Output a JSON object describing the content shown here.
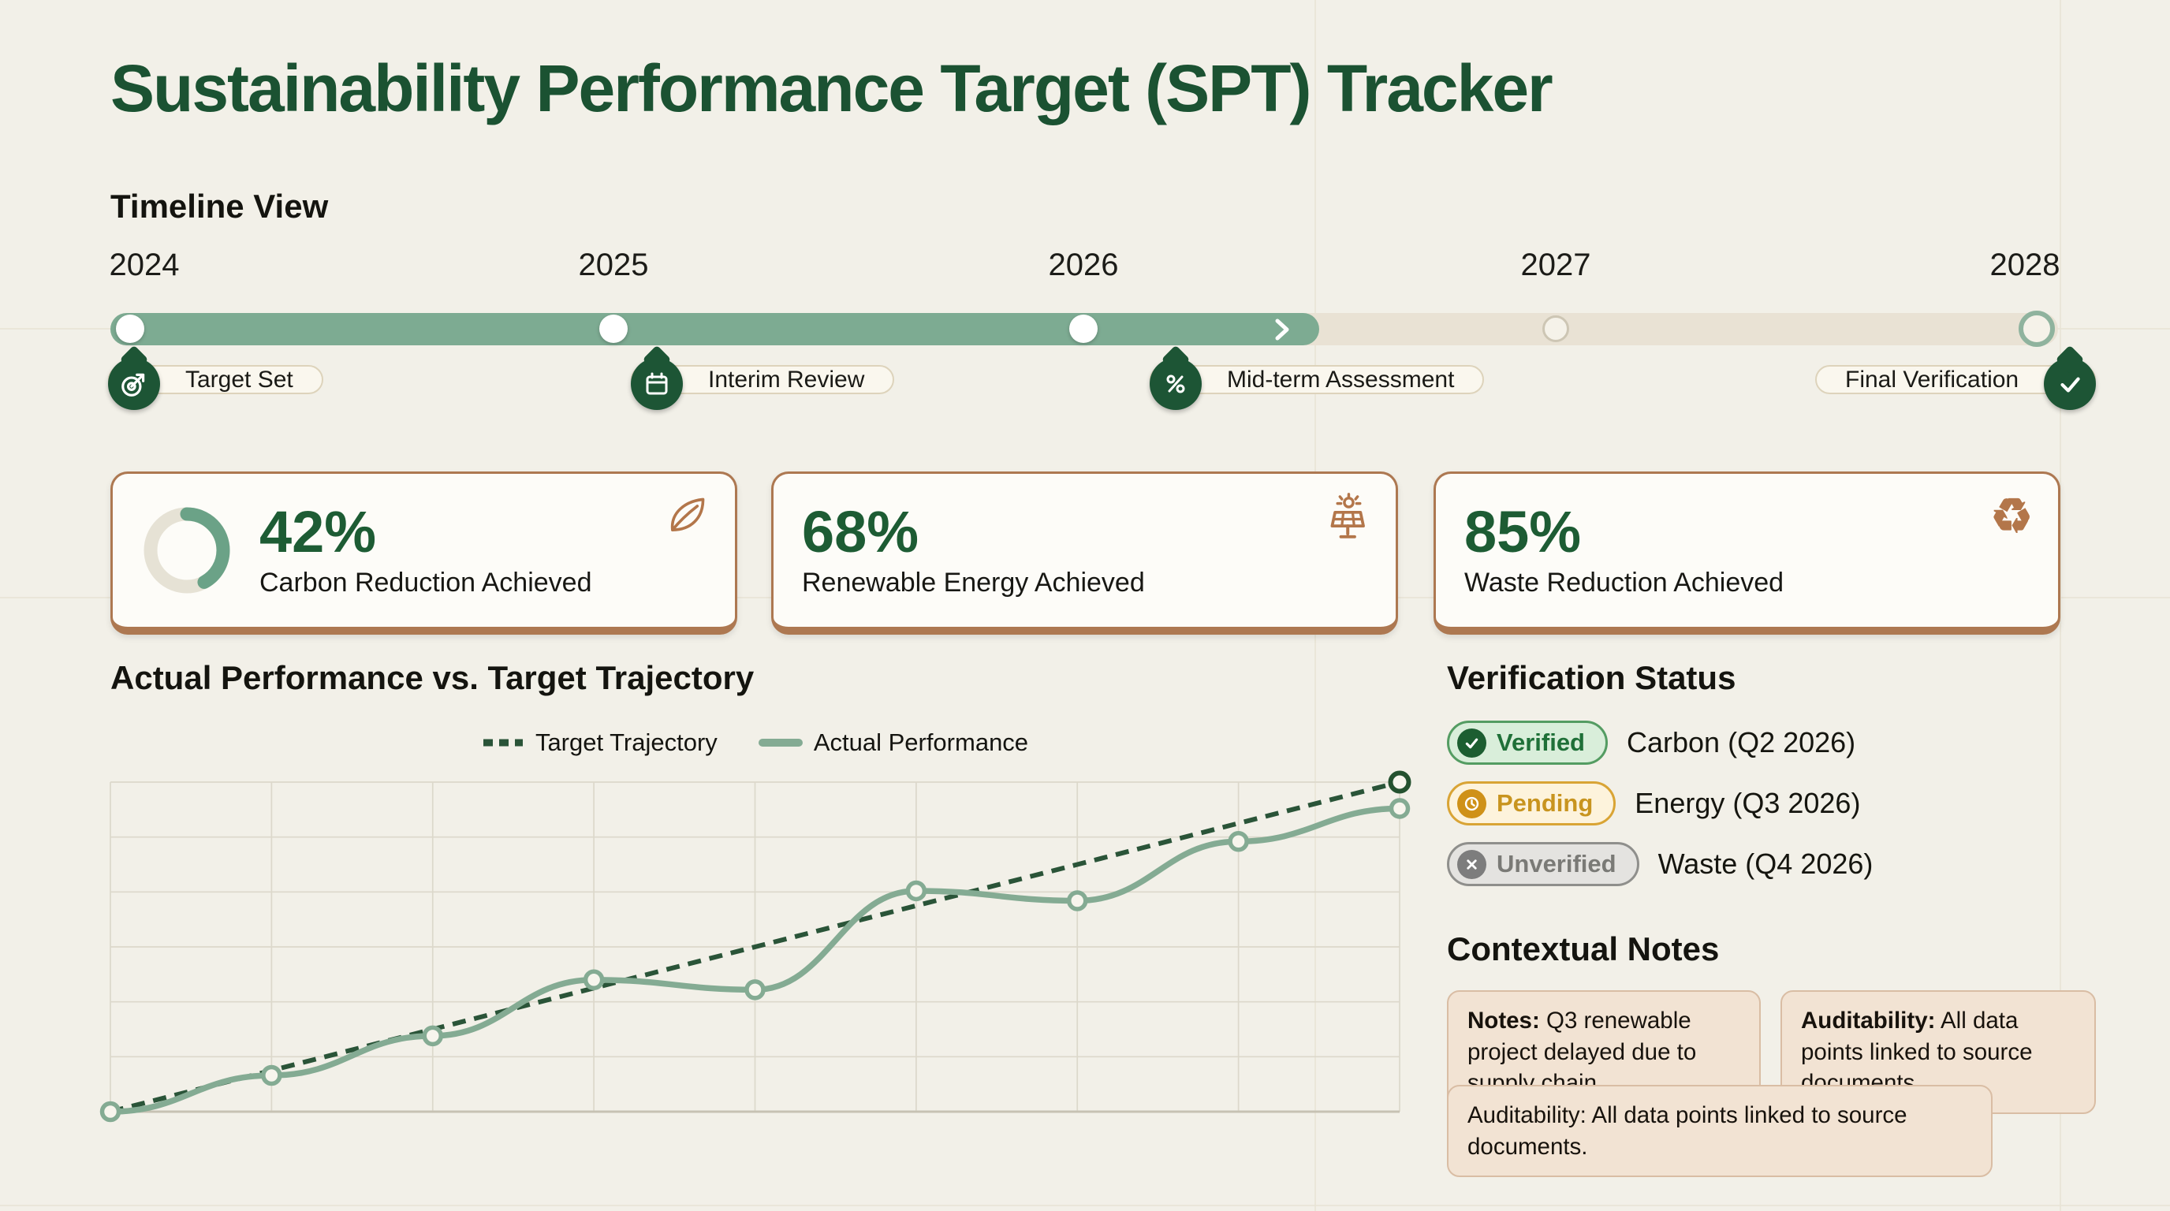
{
  "page": {
    "title": "Sustainability Performance Target (SPT) Tracker"
  },
  "timeline": {
    "heading": "Timeline View",
    "years": [
      "2024",
      "2025",
      "2026",
      "2027",
      "2028"
    ],
    "progress_percent": 62,
    "milestones": [
      {
        "label": "Target Set",
        "icon": "target-icon",
        "year": "2024"
      },
      {
        "label": "Interim Review",
        "icon": "calendar-icon",
        "year": "2025"
      },
      {
        "label": "Mid-term Assessment",
        "icon": "percent-icon",
        "year": "2026"
      },
      {
        "label": "Final Verification",
        "icon": "check-icon",
        "year": "2028"
      }
    ]
  },
  "kpis": [
    {
      "value": "42%",
      "percent": 42,
      "label": "Carbon Reduction Achieved",
      "icon": "leaf-icon",
      "has_donut": true
    },
    {
      "value": "68%",
      "percent": 68,
      "label": "Renewable Energy Achieved",
      "icon": "solar-panel-icon",
      "has_donut": false
    },
    {
      "value": "85%",
      "percent": 85,
      "label": "Waste Reduction Achieved",
      "icon": "recycle-icon",
      "has_donut": false
    }
  ],
  "chart": {
    "heading": "Actual Performance vs. Target Trajectory",
    "legend": [
      "Target Trajectory",
      "Actual Performance"
    ]
  },
  "chart_data": {
    "type": "line",
    "title": "Actual Performance vs. Target Trajectory",
    "x": [
      1,
      2,
      3,
      4,
      5,
      6,
      7,
      8,
      9
    ],
    "x_tick_labels": [],
    "y_tick_labels": [],
    "ylim": [
      0,
      100
    ],
    "grid": true,
    "legend_position": "top-center",
    "series": [
      {
        "name": "Target Trajectory",
        "style": "dashed",
        "color": "#2a5438",
        "marker": "circle-at-end",
        "values": [
          0,
          12.5,
          25,
          37.5,
          50,
          62.5,
          75,
          87.5,
          100
        ]
      },
      {
        "name": "Actual Performance",
        "style": "solid",
        "color": "#84ab93",
        "marker": "circle",
        "values": [
          0,
          11,
          23,
          40,
          37,
          67,
          64,
          82,
          92
        ]
      }
    ]
  },
  "verification": {
    "heading": "Verification Status",
    "items": [
      {
        "status": "Verified",
        "target": "Carbon (Q2 2026)",
        "icon": "check-circle-icon",
        "tone": "green"
      },
      {
        "status": "Pending",
        "target": "Energy (Q3 2026)",
        "icon": "clock-circle-icon",
        "tone": "amber"
      },
      {
        "status": "Unverified",
        "target": "Waste (Q4 2026)",
        "icon": "x-circle-icon",
        "tone": "gray"
      }
    ]
  },
  "notes": {
    "heading": "Contextual Notes",
    "cards": [
      {
        "lead": "Notes:",
        "text": " Q3 renewable project delayed due to supply chain."
      },
      {
        "lead": "Auditability:",
        "text": " All data points linked to source documents."
      },
      {
        "lead": "",
        "text": "Auditability: All data points linked to source documents."
      }
    ]
  },
  "colors": {
    "background": "#f2f0e8",
    "title_green": "#1b5232",
    "sage": "#7dab92",
    "track_beige": "#e9e2d4",
    "pin_green": "#1d5535",
    "copper": "#ad7851",
    "copper_icon": "#b3764a",
    "card_bg": "#fdfcf8",
    "number_green": "#1d5c34",
    "grid_line": "#dcd8cb",
    "axis_line": "#c7c2b3",
    "target_line": "#2a5438",
    "actual_line": "#84ab93",
    "marker_fill": "#f7f5ed",
    "note_bg": "#f2e3d3",
    "note_border": "#d9bda4",
    "pill_bg": "#faf7ee",
    "pill_border": "#ddd3bb",
    "verified_bg": "#d9eeda",
    "verified_border": "#549c62",
    "verified_text": "#1f7038",
    "verified_icon_bg": "#1c5e31",
    "pending_bg": "#fdf3dc",
    "pending_border": "#d9a435",
    "pending_text": "#c8941f",
    "pending_icon_bg": "#cf9118",
    "unverified_bg": "#e4e3e0",
    "unverified_border": "#8f8f8c",
    "unverified_text": "#7a7a76",
    "unverified_icon_bg": "#7d7d7d",
    "ink": "#171715"
  }
}
